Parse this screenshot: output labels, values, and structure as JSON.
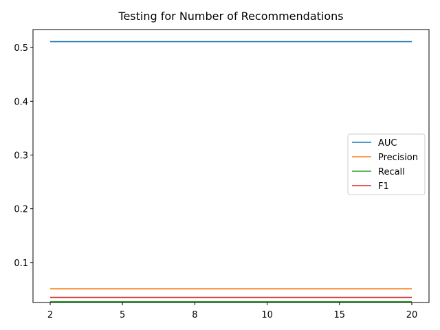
{
  "chart_data": {
    "type": "line",
    "title": "Testing for Number of Recommendations",
    "xlabel": "",
    "ylabel": "",
    "x": [
      "2",
      "5",
      "8",
      "10",
      "15",
      "20"
    ],
    "x_tick_labels": [
      "2",
      "5",
      "8",
      "10",
      "15",
      "20"
    ],
    "y_tick_labels": [
      "0.1",
      "0.2",
      "0.3",
      "0.4",
      "0.5"
    ],
    "y_ticks": [
      0.1,
      0.2,
      0.3,
      0.4,
      0.5
    ],
    "ylim": [
      0.0255,
      0.5335
    ],
    "grid": false,
    "legend_position": "center-right",
    "series": [
      {
        "name": "AUC",
        "color": "#1f77b4",
        "values": [
          0.511,
          0.511,
          0.511,
          0.511,
          0.511,
          0.511
        ]
      },
      {
        "name": "Precision",
        "color": "#ff7f0e",
        "values": [
          0.051,
          0.051,
          0.051,
          0.051,
          0.051,
          0.051
        ]
      },
      {
        "name": "Recall",
        "color": "#2ca02c",
        "values": [
          0.027,
          0.027,
          0.027,
          0.027,
          0.027,
          0.027
        ]
      },
      {
        "name": "F1",
        "color": "#d62728",
        "values": [
          0.035,
          0.035,
          0.035,
          0.035,
          0.035,
          0.035
        ]
      }
    ]
  }
}
